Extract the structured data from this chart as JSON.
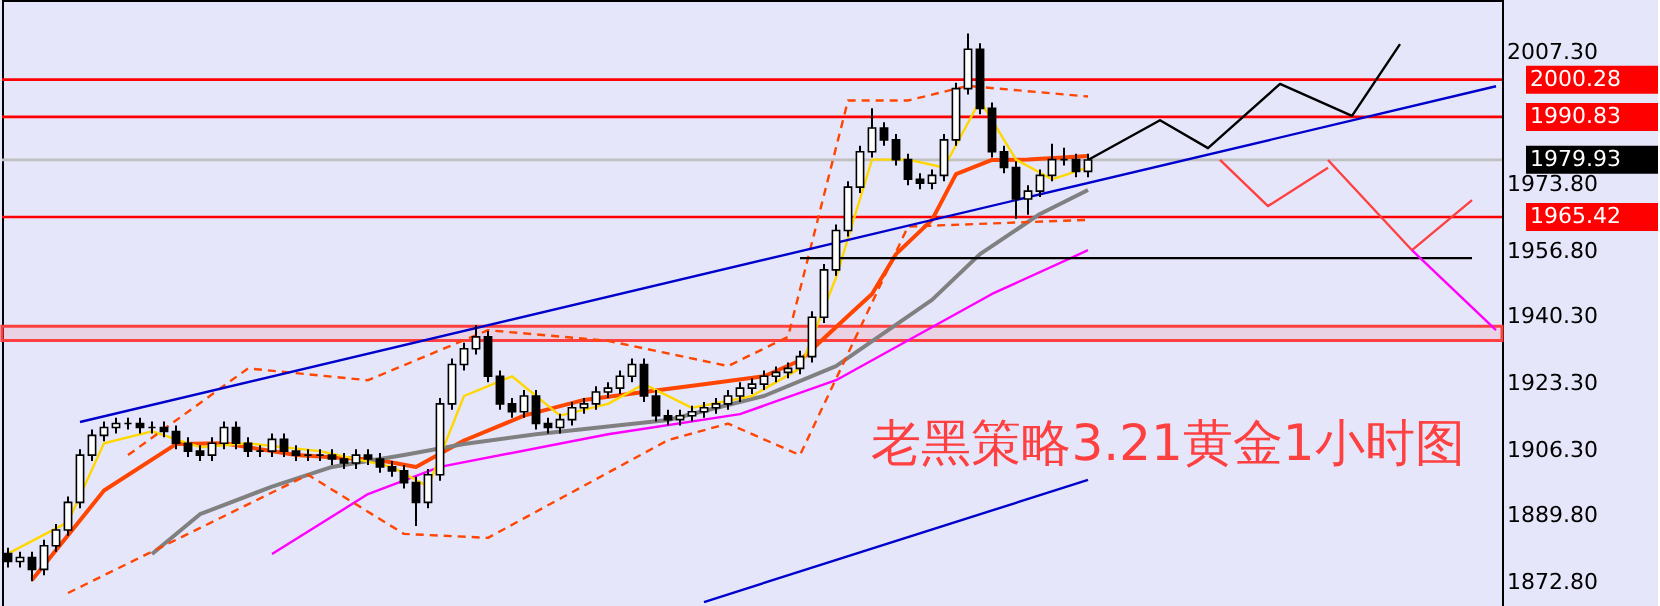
{
  "chart_data": {
    "type": "candlestick",
    "categories": [
      null,
      null,
      null,
      null,
      null,
      null,
      null,
      null,
      null,
      null,
      null,
      null,
      null,
      null,
      null,
      null,
      null,
      null,
      null,
      null,
      null,
      null,
      null,
      null,
      null,
      null,
      null,
      null,
      null,
      null,
      null,
      null,
      null,
      null,
      null,
      null,
      null,
      null,
      null,
      null,
      null,
      null,
      null,
      null,
      null,
      null,
      null,
      null,
      null,
      null,
      null,
      null,
      null,
      null,
      null,
      null,
      null,
      null,
      null,
      null,
      null,
      null,
      null,
      null,
      null,
      null,
      null,
      null,
      null,
      null,
      null,
      null,
      null,
      null,
      null,
      null,
      null,
      null,
      null,
      null,
      null,
      null,
      null,
      null,
      null,
      null,
      null,
      null,
      null,
      null,
      null,
      null,
      null,
      null,
      null,
      null,
      null,
      null,
      null,
      null,
      null,
      null,
      null,
      null,
      null,
      null,
      null,
      null,
      null,
      null,
      null,
      null,
      null,
      null,
      null,
      null,
      null,
      null,
      null,
      null,
      null,
      null,
      null,
      null,
      null
    ],
    "ohlc": [
      [
        1880,
        1881.5,
        1876.5,
        1878
      ],
      [
        1878,
        1880.5,
        1876.5,
        1879
      ],
      [
        1879,
        1880.5,
        1873,
        1876
      ],
      [
        1876,
        1883.5,
        1874.5,
        1882
      ],
      [
        1882,
        1887.5,
        1880.5,
        1886
      ],
      [
        1886,
        1894.5,
        1884.5,
        1893
      ],
      [
        1893,
        1906.5,
        1891.5,
        1905
      ],
      [
        1905,
        1911.5,
        1903.5,
        1910
      ],
      [
        1910,
        1913.5,
        1908.5,
        1912
      ],
      [
        1912,
        1914.5,
        1910.5,
        1913
      ],
      [
        1913,
        1914.5,
        1911.5,
        1913
      ],
      [
        1913,
        1914.5,
        1910.5,
        1912
      ],
      [
        1912,
        1913.5,
        1910.5,
        1912
      ],
      [
        1912,
        1913.5,
        1909.5,
        1911
      ],
      [
        1911,
        1912.5,
        1906.5,
        1908
      ],
      [
        1908,
        1909.5,
        1904.5,
        1906
      ],
      [
        1906,
        1907.5,
        1903.5,
        1905
      ],
      [
        1905,
        1909.5,
        1903.5,
        1908
      ],
      [
        1908,
        1913.5,
        1906.5,
        1912
      ],
      [
        1912,
        1913.5,
        1906.5,
        1908
      ],
      [
        1908,
        1909.5,
        1904.5,
        1906
      ],
      [
        1906,
        1907.5,
        1904.5,
        1906
      ],
      [
        1906,
        1910.5,
        1904.5,
        1909
      ],
      [
        1909,
        1910.5,
        1904.5,
        1906
      ],
      [
        1906,
        1907.5,
        1903.5,
        1905
      ],
      [
        1905,
        1906.5,
        1903.5,
        1905
      ],
      [
        1905,
        1906.5,
        1903.5,
        1905
      ],
      [
        1905,
        1906.5,
        1902.5,
        1904
      ],
      [
        1904,
        1905.5,
        1901.5,
        1903
      ],
      [
        1903,
        1906.5,
        1901.5,
        1905
      ],
      [
        1905,
        1906.5,
        1902.5,
        1904
      ],
      [
        1904,
        1905.5,
        1900.5,
        1902
      ],
      [
        1902,
        1903.5,
        1899.5,
        1901
      ],
      [
        1901,
        1902.5,
        1896.5,
        1898
      ],
      [
        1898,
        1899.5,
        1887,
        1893
      ],
      [
        1893,
        1901.5,
        1891.5,
        1900
      ],
      [
        1900,
        1919.5,
        1898.5,
        1918
      ],
      [
        1918,
        1929.5,
        1916.5,
        1928
      ],
      [
        1928,
        1933.5,
        1926.5,
        1932
      ],
      [
        1932,
        1938,
        1930.5,
        1935
      ],
      [
        1935,
        1936.5,
        1923.5,
        1925
      ],
      [
        1925,
        1926.5,
        1916.5,
        1918
      ],
      [
        1918,
        1919.5,
        1914.5,
        1916
      ],
      [
        1916,
        1921.5,
        1914.5,
        1920
      ],
      [
        1920,
        1921.5,
        1911.5,
        1913
      ],
      [
        1913,
        1914.5,
        1910.5,
        1912
      ],
      [
        1912,
        1915.5,
        1910.5,
        1914
      ],
      [
        1914,
        1918.5,
        1912.5,
        1917
      ],
      [
        1917,
        1919.5,
        1915.5,
        1918
      ],
      [
        1918,
        1922.5,
        1916.5,
        1921
      ],
      [
        1921,
        1923.5,
        1919.5,
        1922
      ],
      [
        1922,
        1926.5,
        1920.5,
        1925
      ],
      [
        1925,
        1929.5,
        1923.5,
        1928
      ],
      [
        1928,
        1929.5,
        1918.5,
        1920
      ],
      [
        1920,
        1921.5,
        1913.5,
        1915
      ],
      [
        1915,
        1916.5,
        1912.5,
        1914
      ],
      [
        1914,
        1916.5,
        1912.5,
        1915
      ],
      [
        1915,
        1917.5,
        1913.5,
        1916
      ],
      [
        1916,
        1918.5,
        1914.5,
        1917
      ],
      [
        1917,
        1919.5,
        1915.5,
        1918
      ],
      [
        1918,
        1921.5,
        1916.5,
        1920
      ],
      [
        1920,
        1923.5,
        1918.5,
        1922
      ],
      [
        1922,
        1924.5,
        1920.5,
        1923
      ],
      [
        1923,
        1926.5,
        1921.5,
        1925
      ],
      [
        1925,
        1927.5,
        1923.5,
        1926
      ],
      [
        1926,
        1928.5,
        1924.5,
        1927
      ],
      [
        1927,
        1931.5,
        1925.5,
        1930
      ],
      [
        1930,
        1941.5,
        1928.5,
        1940
      ],
      [
        1940,
        1953.5,
        1938.5,
        1952
      ],
      [
        1952,
        1963.5,
        1950.5,
        1962
      ],
      [
        1962,
        1974.5,
        1960.5,
        1973
      ],
      [
        1973,
        1983.5,
        1971.5,
        1982
      ],
      [
        1982,
        1993,
        1980.5,
        1988
      ],
      [
        1988,
        1989.5,
        1983.5,
        1985
      ],
      [
        1985,
        1986.5,
        1978.5,
        1980
      ],
      [
        1980,
        1981.5,
        1973.5,
        1975
      ],
      [
        1975,
        1976.5,
        1972.5,
        1974
      ],
      [
        1974,
        1977.5,
        1972.5,
        1976
      ],
      [
        1976,
        1986.5,
        1974.5,
        1985
      ],
      [
        1985,
        1999.5,
        1983.5,
        1998
      ],
      [
        1998,
        2012,
        1996.5,
        2008
      ],
      [
        2008,
        2009.5,
        1991.5,
        1993
      ],
      [
        1993,
        1994.5,
        1980.5,
        1982
      ],
      [
        1982,
        1983.5,
        1976.5,
        1978
      ],
      [
        1978,
        1979.5,
        1965,
        1970
      ],
      [
        1970,
        1973.5,
        1966,
        1972
      ],
      [
        1972,
        1977.5,
        1970.5,
        1976
      ],
      [
        1976,
        1984,
        1974.5,
        1980
      ],
      [
        1980,
        1983,
        1978.5,
        1980
      ],
      [
        1980,
        1981.5,
        1975.5,
        1977
      ],
      [
        1977,
        1981.5,
        1975.5,
        1979.9
      ],
      null,
      null,
      null,
      null,
      null,
      null,
      null,
      null,
      null,
      null,
      null,
      null,
      null,
      null,
      null,
      null,
      null,
      null,
      null,
      null,
      null,
      null,
      null,
      null,
      null,
      null,
      null,
      null,
      null,
      null,
      null,
      null,
      null,
      null
    ],
    "series": [
      {
        "type": "line",
        "color": "#ff4500",
        "values": [
          null,
          null,
          1873.3,
          null,
          null,
          null,
          null,
          null,
          1896,
          null,
          null,
          null,
          null,
          null,
          1907.8,
          null,
          null,
          null,
          1908,
          null,
          null,
          null,
          null,
          null,
          1905,
          null,
          null,
          null,
          null,
          null,
          null,
          1903.7,
          null,
          null,
          1902,
          null,
          null,
          null,
          1908.7,
          null,
          null,
          null,
          null,
          1915,
          null,
          null,
          null,
          null,
          1919,
          null,
          null,
          null,
          null,
          1921,
          null,
          null,
          null,
          null,
          1923,
          null,
          null,
          null,
          null,
          1925,
          null,
          null,
          1929,
          null,
          null,
          null,
          1940.3,
          null,
          1945.9,
          null,
          1956,
          null,
          null,
          1964.7,
          null,
          1976.3,
          null,
          null,
          1979.9,
          null,
          null,
          1980,
          null,
          null,
          null,
          null,
          1980.9,
          null,
          null,
          null,
          null,
          null,
          null,
          null,
          null,
          null,
          null,
          null,
          null,
          null,
          null,
          null,
          null,
          null,
          null,
          null,
          null,
          null,
          null,
          null,
          null,
          null,
          null,
          null,
          null,
          null,
          null,
          null,
          null,
          null,
          null
        ]
      },
      {
        "type": "line",
        "color": "#808080",
        "values": [
          null,
          null,
          null,
          null,
          null,
          null,
          null,
          null,
          null,
          null,
          null,
          null,
          1879.9,
          null,
          null,
          null,
          1890,
          null,
          null,
          null,
          null,
          null,
          1897,
          null,
          null,
          null,
          null,
          1902,
          null,
          null,
          null,
          null,
          null,
          1905,
          null,
          null,
          null,
          null,
          1907.8,
          null,
          null,
          null,
          null,
          null,
          1910.3,
          null,
          null,
          null,
          null,
          null,
          null,
          null,
          null,
          null,
          null,
          1913.9,
          null,
          null,
          null,
          null,
          null,
          null,
          null,
          1920,
          null,
          null,
          null,
          null,
          null,
          1927.6,
          null,
          null,
          null,
          null,
          null,
          null,
          null,
          1944.4,
          null,
          null,
          null,
          1956,
          null,
          null,
          null,
          null,
          1966.2,
          null,
          null,
          null,
          1972.3,
          null,
          null,
          null,
          null,
          null,
          null,
          null,
          null,
          null,
          null,
          null,
          null,
          null,
          null,
          null,
          null,
          null,
          null,
          null,
          null,
          null,
          null,
          null,
          null,
          null,
          null,
          null,
          null,
          null,
          null,
          null,
          null,
          null,
          null
        ]
      },
      {
        "type": "line",
        "color": "#ff00ff",
        "values": [
          null,
          null,
          null,
          null,
          null,
          null,
          null,
          null,
          null,
          null,
          null,
          null,
          null,
          null,
          null,
          null,
          null,
          null,
          null,
          null,
          null,
          null,
          1879.9,
          null,
          null,
          null,
          null,
          null,
          null,
          null,
          1895.1,
          null,
          null,
          null,
          null,
          null,
          1902,
          null,
          null,
          null,
          null,
          null,
          null,
          null,
          null,
          null,
          null,
          null,
          null,
          null,
          1910.3,
          null,
          null,
          null,
          null,
          null,
          null,
          null,
          null,
          null,
          null,
          1915.4,
          null,
          null,
          null,
          null,
          null,
          null,
          null,
          1924,
          null,
          null,
          null,
          null,
          null,
          null,
          null,
          null,
          null,
          null,
          null,
          null,
          1945.9,
          null,
          null,
          null,
          null,
          null,
          null,
          null,
          1957,
          null,
          null,
          null,
          null,
          null,
          null,
          null,
          null,
          null,
          null,
          null,
          null,
          null,
          null,
          null,
          null,
          null,
          null,
          null,
          null,
          null,
          null,
          null,
          null,
          null,
          null,
          null,
          null,
          null,
          null,
          null,
          null,
          null,
          null
        ]
      },
      {
        "type": "line",
        "color": "#ffd700",
        "values": [
          1880,
          null,
          null,
          null,
          null,
          1888,
          null,
          null,
          1908,
          null,
          null,
          null,
          1911,
          null,
          null,
          null,
          1907,
          null,
          null,
          null,
          1908,
          null,
          null,
          null,
          null,
          null,
          1906,
          null,
          null,
          null,
          null,
          null,
          1902,
          null,
          null,
          1897,
          null,
          null,
          1920,
          null,
          null,
          null,
          1925,
          null,
          null,
          null,
          1915,
          null,
          null,
          null,
          1918,
          null,
          null,
          1923,
          null,
          null,
          null,
          1917,
          null,
          null,
          null,
          null,
          1920,
          null,
          null,
          null,
          1927,
          null,
          null,
          1950,
          null,
          null,
          1980,
          null,
          null,
          1980,
          null,
          null,
          1978,
          null,
          null,
          1995,
          null,
          null,
          1980,
          null,
          null,
          1975,
          null,
          null,
          1978,
          null,
          null,
          null,
          null,
          null,
          null,
          null,
          null,
          null,
          null,
          null,
          null,
          null,
          null,
          null,
          null,
          null,
          null,
          null,
          null,
          null,
          null,
          null,
          null,
          null,
          null,
          null,
          null,
          null,
          null,
          null,
          null,
          null,
          null
        ]
      },
      {
        "type": "line",
        "color": "#ff4500",
        "line_style": "dashed",
        "values": [
          null,
          null,
          null,
          null,
          null,
          null,
          null,
          null,
          null,
          null,
          1905,
          null,
          null,
          null,
          null,
          null,
          null,
          null,
          null,
          null,
          1927,
          null,
          null,
          null,
          null,
          null,
          null,
          null,
          null,
          null,
          1924,
          null,
          null,
          null,
          null,
          null,
          null,
          null,
          null,
          null,
          1936.7,
          null,
          null,
          null,
          null,
          null,
          null,
          null,
          null,
          null,
          1934,
          null,
          null,
          null,
          null,
          null,
          null,
          null,
          null,
          null,
          1927.6,
          null,
          null,
          null,
          null,
          1935,
          null,
          null,
          null,
          null,
          1995,
          null,
          null,
          null,
          null,
          1995,
          null,
          null,
          null,
          null,
          1998.7,
          null,
          null,
          null,
          null,
          null,
          null,
          null,
          null,
          null,
          1996,
          null,
          null,
          null,
          null,
          null,
          null,
          null,
          null,
          null,
          null,
          null,
          null,
          null,
          null,
          null,
          null,
          null,
          null,
          null,
          null,
          null,
          null,
          null,
          null,
          null,
          null,
          null,
          null,
          null,
          null,
          null,
          null,
          null,
          null
        ]
      },
      {
        "type": "line",
        "color": "#ff4500",
        "line_style": "dashed",
        "values": [
          null,
          null,
          null,
          null,
          null,
          1870,
          null,
          null,
          null,
          null,
          null,
          null,
          null,
          null,
          null,
          1885,
          null,
          null,
          null,
          null,
          null,
          null,
          null,
          null,
          null,
          1900,
          null,
          null,
          null,
          null,
          null,
          null,
          null,
          1885,
          null,
          null,
          null,
          null,
          null,
          null,
          1884,
          null,
          null,
          null,
          null,
          null,
          null,
          null,
          null,
          null,
          null,
          null,
          null,
          null,
          null,
          1908.8,
          null,
          null,
          null,
          null,
          1913,
          null,
          null,
          null,
          null,
          null,
          1905,
          null,
          null,
          null,
          null,
          null,
          null,
          null,
          null,
          1963,
          null,
          null,
          null,
          null,
          null,
          null,
          null,
          null,
          null,
          null,
          null,
          null,
          null,
          null,
          1964.7,
          null,
          null,
          null,
          null,
          null,
          null,
          null,
          null,
          null,
          null,
          null,
          null,
          null,
          null,
          null,
          null,
          null,
          null,
          null,
          null,
          null,
          null,
          null,
          null,
          null,
          null,
          null,
          null,
          null,
          null,
          null,
          null,
          null,
          null
        ]
      },
      {
        "type": "line",
        "color": "#0000cd",
        "values": [
          null,
          null,
          null,
          null,
          null,
          null,
          1913.4,
          null,
          null,
          null,
          null,
          null,
          null,
          null,
          null,
          null,
          null,
          null,
          null,
          null,
          null,
          null,
          null,
          null,
          null,
          null,
          null,
          null,
          null,
          null,
          null,
          null,
          null,
          null,
          null,
          null,
          null,
          null,
          null,
          null,
          null,
          null,
          null,
          null,
          null,
          null,
          null,
          null,
          null,
          null,
          null,
          null,
          null,
          null,
          null,
          null,
          null,
          null,
          null,
          null,
          null,
          null,
          null,
          null,
          null,
          null,
          null,
          null,
          null,
          null,
          null,
          null,
          null,
          null,
          null,
          null,
          null,
          null,
          null,
          null,
          null,
          null,
          null,
          null,
          null,
          null,
          null,
          null,
          null,
          null,
          null,
          null,
          null,
          null,
          null,
          null,
          null,
          null,
          null,
          null,
          null,
          null,
          null,
          null,
          null,
          null,
          null,
          null,
          null,
          null,
          null,
          null,
          null,
          null,
          null,
          null,
          null,
          null,
          null,
          null,
          null,
          null,
          null,
          null,
          1998.6
        ]
      },
      {
        "type": "line",
        "color": "#0000cd",
        "values": [
          null,
          null,
          null,
          null,
          null,
          null,
          null,
          null,
          null,
          null,
          null,
          null,
          null,
          null,
          null,
          null,
          null,
          null,
          null,
          null,
          null,
          null,
          null,
          null,
          null,
          null,
          null,
          null,
          null,
          null,
          null,
          null,
          null,
          null,
          null,
          null,
          null,
          null,
          null,
          null,
          null,
          null,
          null,
          null,
          null,
          null,
          null,
          null,
          null,
          null,
          null,
          null,
          null,
          null,
          null,
          null,
          null,
          null,
          1867.7,
          null,
          null,
          null,
          null,
          null,
          null,
          null,
          null,
          null,
          null,
          null,
          null,
          null,
          null,
          null,
          null,
          null,
          null,
          null,
          null,
          null,
          null,
          null,
          null,
          null,
          null,
          null,
          null,
          null,
          null,
          null,
          1898.7,
          null,
          null,
          null,
          null,
          null,
          null,
          null,
          null,
          null,
          null,
          null,
          null,
          null,
          null,
          null,
          null,
          null,
          null,
          null,
          null,
          null,
          null,
          null,
          null,
          null,
          null,
          null,
          null,
          null,
          null,
          null,
          null,
          null,
          null
        ]
      },
      {
        "type": "line",
        "color": "#000000",
        "values": [
          null,
          null,
          null,
          null,
          null,
          null,
          null,
          null,
          null,
          null,
          null,
          null,
          null,
          null,
          null,
          null,
          null,
          null,
          null,
          null,
          null,
          null,
          null,
          null,
          null,
          null,
          null,
          null,
          null,
          null,
          null,
          null,
          null,
          null,
          null,
          null,
          null,
          null,
          null,
          null,
          null,
          null,
          null,
          null,
          null,
          null,
          null,
          null,
          null,
          null,
          null,
          null,
          null,
          null,
          null,
          null,
          null,
          null,
          null,
          null,
          null,
          null,
          null,
          null,
          null,
          null,
          1955,
          null,
          null,
          null,
          null,
          null,
          null,
          null,
          null,
          null,
          null,
          null,
          null,
          null,
          null,
          null,
          null,
          null,
          null,
          null,
          null,
          null,
          null,
          null,
          null,
          null,
          null,
          null,
          null,
          null,
          null,
          null,
          null,
          null,
          null,
          null,
          null,
          null,
          null,
          null,
          null,
          null,
          null,
          null,
          null,
          null,
          null,
          null,
          null,
          null,
          null,
          null,
          null,
          null,
          null,
          null,
          1955,
          null,
          null
        ]
      },
      {
        "type": "line",
        "color": "#000000",
        "values": [
          null,
          null,
          null,
          null,
          null,
          null,
          null,
          null,
          null,
          null,
          null,
          null,
          null,
          null,
          null,
          null,
          null,
          null,
          null,
          null,
          null,
          null,
          null,
          null,
          null,
          null,
          null,
          null,
          null,
          null,
          null,
          null,
          null,
          null,
          null,
          null,
          null,
          null,
          null,
          null,
          null,
          null,
          null,
          null,
          null,
          null,
          null,
          null,
          null,
          null,
          null,
          null,
          null,
          null,
          null,
          null,
          null,
          null,
          null,
          null,
          null,
          null,
          null,
          null,
          null,
          null,
          null,
          null,
          null,
          null,
          null,
          null,
          null,
          null,
          null,
          null,
          null,
          null,
          null,
          null,
          null,
          null,
          null,
          null,
          null,
          null,
          null,
          null,
          null,
          null,
          1979.9,
          null,
          null,
          null,
          null,
          null,
          1990,
          null,
          null,
          null,
          1982.9,
          null,
          null,
          null,
          null,
          null,
          1999.2,
          null,
          null,
          null,
          null,
          null,
          1991.1,
          null,
          null,
          null,
          2009.3,
          null,
          null,
          null,
          null,
          null,
          null,
          null,
          null
        ]
      },
      {
        "type": "line",
        "color": "#ff4040",
        "values": [
          null,
          null,
          null,
          null,
          null,
          null,
          null,
          null,
          null,
          null,
          null,
          null,
          null,
          null,
          null,
          null,
          null,
          null,
          null,
          null,
          null,
          null,
          null,
          null,
          null,
          null,
          null,
          null,
          null,
          null,
          null,
          null,
          null,
          null,
          null,
          null,
          null,
          null,
          null,
          null,
          null,
          null,
          null,
          null,
          null,
          null,
          null,
          null,
          null,
          null,
          null,
          null,
          null,
          null,
          null,
          null,
          null,
          null,
          null,
          null,
          null,
          null,
          null,
          null,
          null,
          null,
          null,
          null,
          null,
          null,
          null,
          null,
          null,
          null,
          null,
          null,
          null,
          null,
          null,
          null,
          null,
          null,
          null,
          null,
          null,
          null,
          null,
          null,
          null,
          null,
          null,
          null,
          null,
          null,
          null,
          null,
          null,
          null,
          null,
          null,
          null,
          1979.9,
          null,
          null,
          null,
          1968.2,
          null,
          null,
          null,
          null,
          1977.9,
          null,
          null,
          null,
          null,
          null,
          null,
          null,
          null,
          null,
          null,
          null,
          null,
          null,
          null
        ]
      },
      {
        "type": "line",
        "color": "#ff4040",
        "values": [
          null,
          null,
          null,
          null,
          null,
          null,
          null,
          null,
          null,
          null,
          null,
          null,
          null,
          null,
          null,
          null,
          null,
          null,
          null,
          null,
          null,
          null,
          null,
          null,
          null,
          null,
          null,
          null,
          null,
          null,
          null,
          null,
          null,
          null,
          null,
          null,
          null,
          null,
          null,
          null,
          null,
          null,
          null,
          null,
          null,
          null,
          null,
          null,
          null,
          null,
          null,
          null,
          null,
          null,
          null,
          null,
          null,
          null,
          null,
          null,
          null,
          null,
          null,
          null,
          null,
          null,
          null,
          null,
          null,
          null,
          null,
          null,
          null,
          null,
          null,
          null,
          null,
          null,
          null,
          null,
          null,
          null,
          null,
          null,
          null,
          null,
          null,
          null,
          null,
          null,
          null,
          null,
          null,
          null,
          null,
          null,
          null,
          null,
          null,
          null,
          null,
          null,
          null,
          null,
          null,
          null,
          null,
          null,
          null,
          null,
          1979.9,
          null,
          null,
          null,
          null,
          null,
          null,
          1957,
          null,
          null,
          null,
          null,
          1969.7,
          null,
          null
        ]
      },
      {
        "type": "line",
        "color": "#ff00ff",
        "values": [
          null,
          null,
          null,
          null,
          null,
          null,
          null,
          null,
          null,
          null,
          null,
          null,
          null,
          null,
          null,
          null,
          null,
          null,
          null,
          null,
          null,
          null,
          null,
          null,
          null,
          null,
          null,
          null,
          null,
          null,
          null,
          null,
          null,
          null,
          null,
          null,
          null,
          null,
          null,
          null,
          null,
          null,
          null,
          null,
          null,
          null,
          null,
          null,
          null,
          null,
          null,
          null,
          null,
          null,
          null,
          null,
          null,
          null,
          null,
          null,
          null,
          null,
          null,
          null,
          null,
          null,
          null,
          null,
          null,
          null,
          null,
          null,
          null,
          null,
          null,
          null,
          null,
          null,
          null,
          null,
          null,
          null,
          null,
          null,
          null,
          null,
          null,
          null,
          null,
          null,
          null,
          null,
          null,
          null,
          null,
          null,
          null,
          null,
          null,
          null,
          null,
          null,
          null,
          null,
          null,
          null,
          null,
          null,
          null,
          null,
          null,
          null,
          null,
          null,
          null,
          null,
          null,
          1957,
          null,
          null,
          null,
          null,
          null,
          null,
          1936.7
        ]
      }
    ],
    "ylim": [
      1866.7,
      2020.5
    ],
    "yticks": [
      {
        "value": 2007.3,
        "label": "2007.30"
      },
      {
        "value": 1973.8,
        "label": "1973.80"
      },
      {
        "value": 1956.8,
        "label": "1956.80"
      },
      {
        "value": 1940.3,
        "label": "1940.30"
      },
      {
        "value": 1923.3,
        "label": "1923.30"
      },
      {
        "value": 1906.3,
        "label": "1906.30"
      },
      {
        "value": 1889.8,
        "label": "1889.80"
      },
      {
        "value": 1872.8,
        "label": "1872.80"
      }
    ],
    "tick_labels": "y",
    "grid": false,
    "ref_lines": [
      {
        "axis": "y",
        "value": 2000.28,
        "label": "2000.28",
        "color": "#ff0000"
      },
      {
        "axis": "y",
        "value": 1990.83,
        "label": "1990.83",
        "color": "#ff0000"
      },
      {
        "axis": "y",
        "value": 1979.93,
        "label": "1979.93",
        "color": "#c0c0c0"
      },
      {
        "axis": "y",
        "value": 1965.42,
        "label": "1965.42",
        "color": "#ff0000"
      }
    ],
    "bands": [
      {
        "axis": "y",
        "from": 1934.1,
        "to": 1937.7,
        "color": "#ff4040"
      }
    ],
    "annotations": [
      "老黑策略3.21黄金1小时图"
    ]
  }
}
